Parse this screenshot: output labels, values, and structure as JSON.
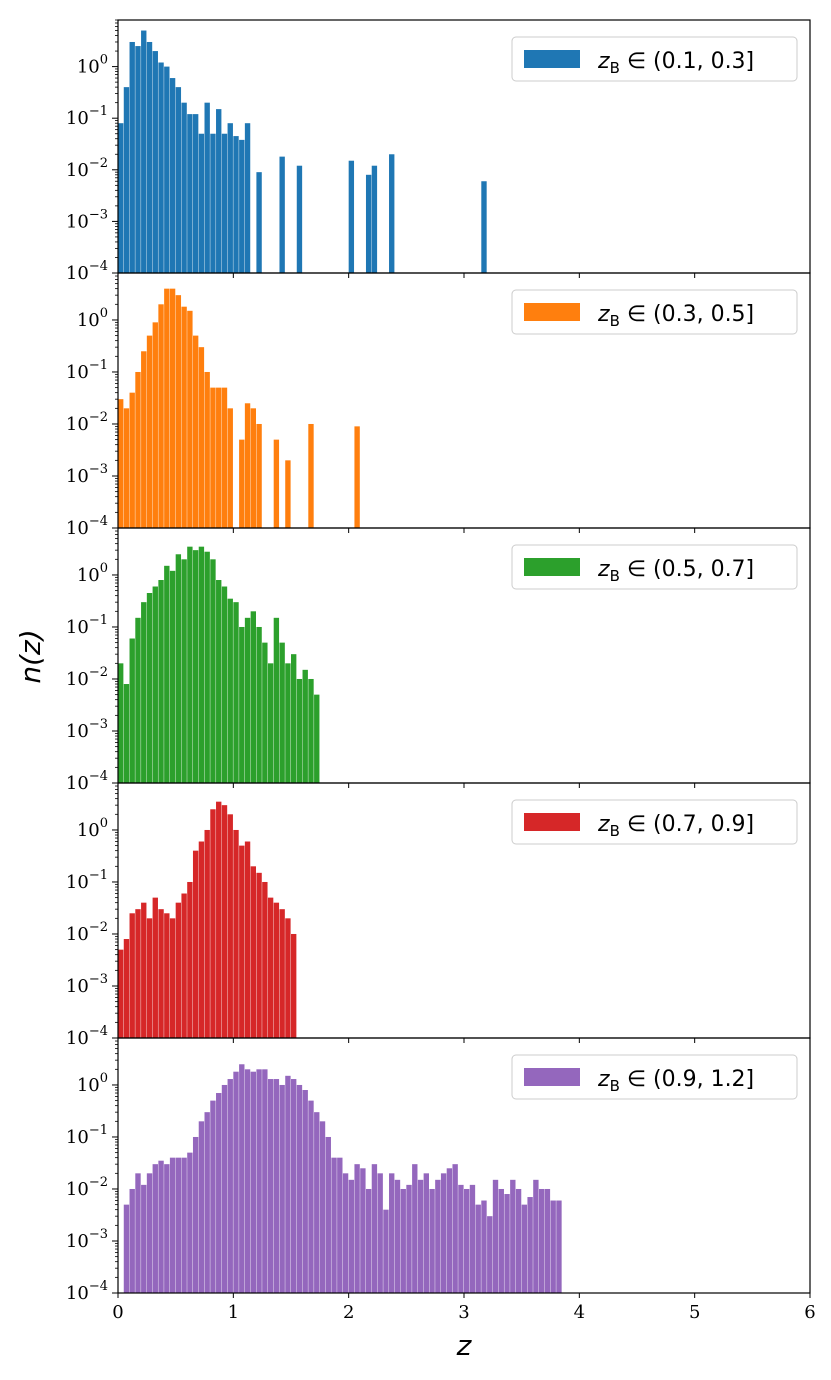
{
  "chart_data": {
    "type": "bar",
    "xlabel": "z",
    "ylabel": "n(z)",
    "xlim": [
      0,
      6
    ],
    "ylim": [
      0.0001,
      8
    ],
    "yscale": "log",
    "bin_width": 0.05,
    "x_ticks": [
      "0",
      "1",
      "2",
      "3",
      "4",
      "5",
      "6"
    ],
    "y_ticks": [
      {
        "base": "10",
        "exp": "0"
      },
      {
        "base": "10",
        "exp": "−1"
      },
      {
        "base": "10",
        "exp": "−2"
      },
      {
        "base": "10",
        "exp": "−3"
      },
      {
        "base": "10",
        "exp": "−4"
      }
    ],
    "legend_placement": "top-right",
    "series": [
      {
        "name": "z_B ∈ (0.1, 0.3]",
        "label_base": "z",
        "label_sub": "B",
        "label_rest": " ∈ (0.1, 0.3]",
        "color": "#1f77b4",
        "values": [
          0.08,
          0.4,
          3.0,
          2.5,
          5.0,
          3.0,
          2.0,
          1.2,
          1.0,
          0.6,
          0.4,
          0.2,
          0.12,
          0.12,
          0.05,
          0.2,
          0.05,
          0.15,
          0.05,
          0.08,
          0.045,
          0.038,
          0.08,
          0.0,
          0.009,
          0.0,
          0.0,
          0.0,
          0.018,
          0.0,
          0.0,
          0.012,
          0.0,
          0.0,
          0.0,
          0.0,
          0.0,
          0.0,
          0.0,
          0.0,
          0.015,
          0.0,
          0.0,
          0.008,
          0.012,
          0.0,
          0.0,
          0.02,
          0.0,
          0.0,
          0.0,
          0.0,
          0.0,
          0.0,
          0.0,
          0.0,
          0.0,
          0.0,
          0.0,
          0.0,
          0.0,
          0.0,
          0.0,
          0.006,
          0.0,
          0.0,
          0.0,
          0.0,
          0.0,
          0.0,
          0.0,
          0.0,
          0.0,
          0.0,
          0.0,
          0.0,
          0.0,
          0.0,
          0.0,
          0.0,
          0.0,
          0.0,
          0.0,
          0.0,
          0.0,
          0.0,
          0.0,
          0.0,
          0.0,
          0.0,
          0.0,
          0.0,
          0.0,
          0.0,
          0.0,
          0.0,
          0.0,
          0.0,
          0.0,
          0.0,
          0.0,
          0.0,
          0.0,
          0.0,
          0.0,
          0.0,
          0.0,
          0.0,
          0.0,
          0.0,
          0.0,
          0.0,
          0.0,
          0.0,
          0.0,
          0.0,
          0.0,
          0.0,
          0.0,
          0.0
        ]
      },
      {
        "name": "z_B ∈ (0.3, 0.5]",
        "label_base": "z",
        "label_sub": "B",
        "label_rest": " ∈ (0.3, 0.5]",
        "color": "#ff7f0e",
        "values": [
          0.03,
          0.02,
          0.04,
          0.1,
          0.25,
          0.5,
          0.9,
          2.0,
          4.0,
          4.0,
          3.0,
          1.8,
          1.5,
          0.5,
          0.3,
          0.1,
          0.05,
          0.05,
          0.05,
          0.02,
          0.0,
          0.005,
          0.025,
          0.02,
          0.01,
          0.0,
          0.0,
          0.005,
          0.0,
          0.002,
          0.0,
          0.0,
          0.0,
          0.01,
          0.0,
          0.0,
          0.0,
          0.0,
          0.0,
          0.0,
          0.0,
          0.009,
          0.0,
          0.0,
          0.0,
          0.0,
          0.0,
          0.0,
          0.0,
          0.0,
          0.0,
          0.0,
          0.0,
          0.0,
          0.0,
          0.0,
          0.0,
          0.0,
          0.0,
          0.0,
          0.0,
          0.0,
          0.0,
          0.0,
          0.0,
          0.0,
          0.0,
          0.0,
          0.0,
          0.0,
          0.0,
          0.0,
          0.0,
          0.0,
          0.0,
          0.0,
          0.0,
          0.0,
          0.0,
          0.0,
          0.0,
          0.0,
          0.0,
          0.0,
          0.0,
          0.0,
          0.0,
          0.0,
          0.0,
          0.0,
          0.0,
          0.0,
          0.0,
          0.0,
          0.0,
          0.0,
          0.0,
          0.0,
          0.0,
          0.0,
          0.0,
          0.0,
          0.0,
          0.0,
          0.0,
          0.0,
          0.0,
          0.0,
          0.0,
          0.0,
          0.0,
          0.0,
          0.0,
          0.0,
          0.0,
          0.0,
          0.0,
          0.0,
          0.0,
          0.0
        ]
      },
      {
        "name": "z_B ∈ (0.5, 0.7]",
        "label_base": "z",
        "label_sub": "B",
        "label_rest": " ∈ (0.5, 0.7]",
        "color": "#2ca02c",
        "values": [
          0.02,
          0.008,
          0.06,
          0.15,
          0.3,
          0.45,
          0.6,
          0.8,
          1.5,
          1.2,
          2.5,
          2.0,
          3.5,
          3.0,
          3.5,
          2.8,
          2.0,
          0.8,
          0.6,
          0.35,
          0.3,
          0.1,
          0.15,
          0.2,
          0.1,
          0.05,
          0.02,
          0.15,
          0.05,
          0.02,
          0.03,
          0.01,
          0.015,
          0.01,
          0.005,
          0.0,
          0.0,
          0.0,
          0.0,
          0.0,
          0.0,
          0.0,
          0.0,
          0.0,
          0.0,
          0.0,
          0.0,
          0.0,
          0.0,
          0.0,
          0.0,
          0.0,
          0.0,
          0.0,
          0.0,
          0.0,
          0.0,
          0.0,
          0.0,
          0.0,
          0.0,
          0.0,
          0.0,
          0.0,
          0.0,
          0.0,
          0.0,
          0.0,
          0.0,
          0.0,
          0.0,
          0.0,
          0.0,
          0.0,
          0.0,
          0.0,
          0.0,
          0.0,
          0.0,
          0.0,
          0.0,
          0.0,
          0.0,
          0.0,
          0.0,
          0.0,
          0.0,
          0.0,
          0.0,
          0.0,
          0.0,
          0.0,
          0.0,
          0.0,
          0.0,
          0.0,
          0.0,
          0.0,
          0.0,
          0.0,
          0.0,
          0.0,
          0.0,
          0.0,
          0.0,
          0.0,
          0.0,
          0.0,
          0.0,
          0.0,
          0.0,
          0.0,
          0.0,
          0.0,
          0.0,
          0.0,
          0.0,
          0.0,
          0.0,
          0.0
        ]
      },
      {
        "name": "z_B ∈ (0.7, 0.9]",
        "label_base": "z",
        "label_sub": "B",
        "label_rest": " ∈ (0.7, 0.9]",
        "color": "#d62728",
        "values": [
          0.005,
          0.008,
          0.025,
          0.03,
          0.04,
          0.02,
          0.05,
          0.03,
          0.025,
          0.02,
          0.04,
          0.06,
          0.1,
          0.4,
          0.6,
          1.0,
          2.5,
          3.5,
          3.0,
          2.0,
          1.0,
          0.5,
          0.6,
          0.2,
          0.15,
          0.1,
          0.05,
          0.04,
          0.03,
          0.02,
          0.01,
          0.0,
          0.0,
          0.0,
          0.0,
          0.0,
          0.0,
          0.0,
          0.0,
          0.0,
          0.0,
          0.0,
          0.0,
          0.0,
          0.0,
          0.0,
          0.0,
          0.0,
          0.0,
          0.0,
          0.0,
          0.0,
          0.0,
          0.0,
          0.0,
          0.0,
          0.0,
          0.0,
          0.0,
          0.0,
          0.0,
          0.0,
          0.0,
          0.0,
          0.0,
          0.0,
          0.0,
          0.0,
          0.0,
          0.0,
          0.0,
          0.0,
          0.0,
          0.0,
          0.0,
          0.0,
          0.0,
          0.0,
          0.0,
          0.0,
          0.0,
          0.0,
          0.0,
          0.0,
          0.0,
          0.0,
          0.0,
          0.0,
          0.0,
          0.0,
          0.0,
          0.0,
          0.0,
          0.0,
          0.0,
          0.0,
          0.0,
          0.0,
          0.0,
          0.0,
          0.0,
          0.0,
          0.0,
          0.0,
          0.0,
          0.0,
          0.0,
          0.0,
          0.0,
          0.0,
          0.0,
          0.0,
          0.0,
          0.0,
          0.0,
          0.0,
          0.0,
          0.0,
          0.0,
          0.0
        ]
      },
      {
        "name": "z_B ∈ (0.9, 1.2]",
        "label_base": "z",
        "label_sub": "B",
        "label_rest": " ∈ (0.9, 1.2]",
        "color": "#9467bd",
        "values": [
          0.0,
          0.005,
          0.01,
          0.02,
          0.012,
          0.02,
          0.03,
          0.035,
          0.03,
          0.04,
          0.04,
          0.04,
          0.05,
          0.1,
          0.2,
          0.3,
          0.5,
          0.7,
          1.0,
          1.3,
          1.8,
          2.5,
          2.0,
          1.8,
          2.0,
          2.0,
          1.3,
          1.3,
          1.0,
          1.5,
          1.3,
          1.0,
          0.8,
          0.5,
          0.3,
          0.2,
          0.1,
          0.04,
          0.04,
          0.02,
          0.015,
          0.03,
          0.025,
          0.01,
          0.03,
          0.02,
          0.004,
          0.02,
          0.015,
          0.01,
          0.012,
          0.03,
          0.015,
          0.02,
          0.01,
          0.015,
          0.02,
          0.025,
          0.03,
          0.012,
          0.01,
          0.012,
          0.005,
          0.006,
          0.003,
          0.015,
          0.01,
          0.008,
          0.015,
          0.01,
          0.005,
          0.007,
          0.015,
          0.01,
          0.01,
          0.006,
          0.006,
          0.0,
          0.0,
          0.0,
          0.0,
          0.0,
          0.0,
          0.0,
          0.0,
          0.0,
          0.0,
          0.0,
          0.0,
          0.0,
          0.0,
          0.0,
          0.0,
          0.0,
          0.0,
          0.0,
          0.0,
          0.0,
          0.0,
          0.0,
          0.0,
          0.0,
          0.0,
          0.0,
          0.0,
          0.0,
          0.0,
          0.0,
          0.0,
          0.0,
          0.0,
          0.0,
          0.0,
          0.0,
          0.0,
          0.0,
          0.0,
          0.0,
          0.0,
          0.0
        ]
      }
    ]
  }
}
